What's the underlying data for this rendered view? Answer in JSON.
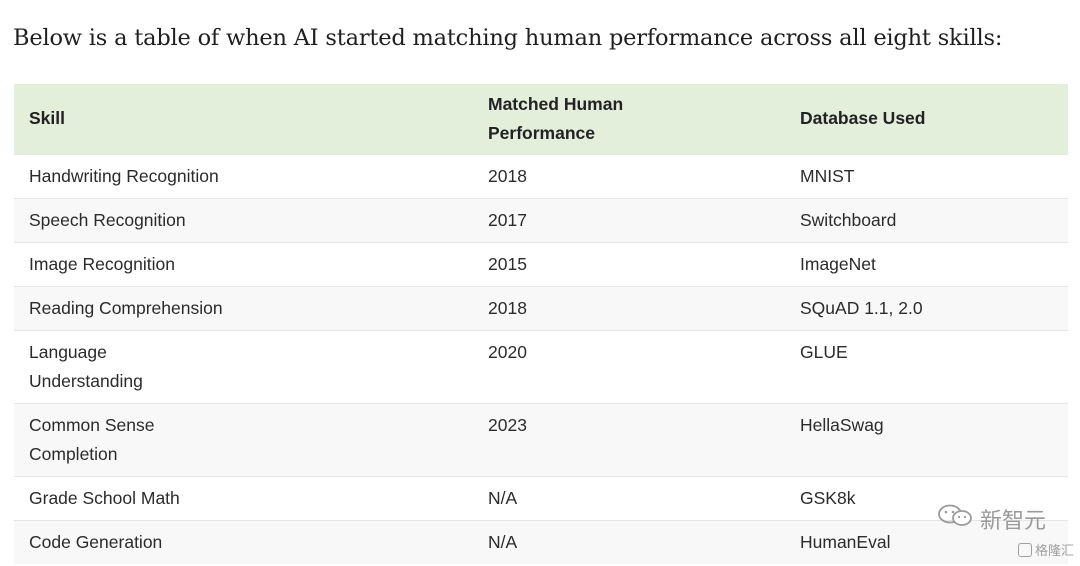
{
  "intro": "Below is a table of when AI started matching human performance across all eight skills:",
  "table": {
    "headers": {
      "skill": "Skill",
      "matched_line1": "Matched Human",
      "matched_line2": "Performance",
      "database": "Database Used"
    },
    "rows": [
      {
        "skill": "Handwriting Recognition",
        "year": "2018",
        "db": "MNIST"
      },
      {
        "skill": "Speech Recognition",
        "year": "2017",
        "db": "Switchboard"
      },
      {
        "skill": "Image Recognition",
        "year": "2015",
        "db": "ImageNet"
      },
      {
        "skill": "Reading Comprehension",
        "year": "2018",
        "db": "SQuAD 1.1, 2.0"
      },
      {
        "skill_line1": "Language",
        "skill_line2": "Understanding",
        "year": "2020",
        "db": "GLUE"
      },
      {
        "skill_line1": "Common Sense",
        "skill_line2": "Completion",
        "year": "2023",
        "db": "HellaSwag"
      },
      {
        "skill": "Grade School Math",
        "year": "N/A",
        "db": "GSK8k"
      },
      {
        "skill": "Code Generation",
        "year": "N/A",
        "db": "HumanEval"
      }
    ]
  },
  "watermark": {
    "main_text": "新智元",
    "sub_text": "格隆汇",
    "icon": "wechat-icon",
    "color": "#9a9a9a"
  },
  "colors": {
    "header_bg": "#e3eedb",
    "stripe_bg": "#f8f8f8"
  }
}
